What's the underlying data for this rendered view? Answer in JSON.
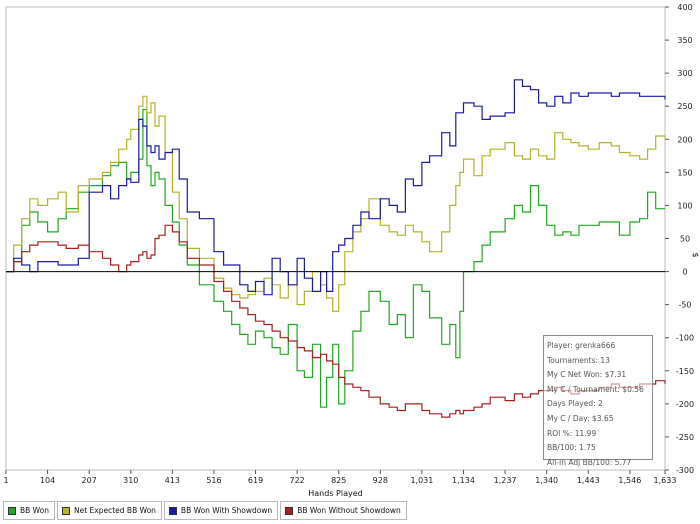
{
  "chart_data": {
    "type": "line",
    "title": "",
    "xlabel": "Hands Played",
    "ylabel": "$",
    "xlim": [
      1,
      1633
    ],
    "ylim": [
      -300,
      400
    ],
    "x_ticks": [
      "1",
      "104",
      "207",
      "310",
      "413",
      "516",
      "619",
      "722",
      "825",
      "928",
      "1,031",
      "1,134",
      "1,237",
      "1,340",
      "1,443",
      "1,546",
      "1,633"
    ],
    "x_tick_values": [
      1,
      104,
      207,
      310,
      413,
      516,
      619,
      722,
      825,
      928,
      1031,
      1134,
      1237,
      1340,
      1443,
      1546,
      1633
    ],
    "y_ticks": [
      400,
      350,
      300,
      250,
      200,
      150,
      100,
      50,
      0,
      -50,
      -100,
      -150,
      -200,
      -250,
      -300
    ],
    "zero_line": true,
    "series": [
      {
        "name": "BB Won",
        "color": "#22a822",
        "x": [
          1,
          20,
          40,
          60,
          80,
          104,
          130,
          150,
          180,
          207,
          240,
          260,
          280,
          300,
          310,
          330,
          340,
          350,
          360,
          370,
          380,
          395,
          413,
          430,
          450,
          480,
          516,
          540,
          560,
          580,
          600,
          619,
          640,
          660,
          680,
          700,
          722,
          740,
          760,
          780,
          795,
          810,
          825,
          840,
          860,
          880,
          900,
          928,
          950,
          970,
          990,
          1010,
          1031,
          1050,
          1080,
          1100,
          1115,
          1125,
          1134,
          1160,
          1180,
          1200,
          1237,
          1260,
          1280,
          1300,
          1320,
          1340,
          1360,
          1380,
          1400,
          1420,
          1443,
          1470,
          1500,
          1520,
          1546,
          1570,
          1590,
          1610,
          1633
        ],
        "values": [
          0,
          15,
          70,
          90,
          75,
          60,
          80,
          95,
          120,
          130,
          145,
          160,
          165,
          140,
          150,
          170,
          245,
          160,
          130,
          150,
          140,
          100,
          75,
          40,
          10,
          -20,
          -45,
          -60,
          -80,
          -95,
          -110,
          -90,
          -100,
          -115,
          -125,
          -80,
          -150,
          -160,
          -110,
          -205,
          -160,
          -110,
          -200,
          -150,
          -90,
          -60,
          -30,
          -45,
          -80,
          -65,
          -100,
          -20,
          -30,
          -70,
          -110,
          -80,
          -130,
          -60,
          0,
          15,
          40,
          60,
          80,
          100,
          90,
          130,
          100,
          70,
          55,
          60,
          55,
          70,
          70,
          75,
          75,
          55,
          75,
          80,
          120,
          95,
          95
        ]
      },
      {
        "name": "Net Expected BB Won",
        "color": "#b4b42a",
        "x": [
          1,
          20,
          40,
          60,
          80,
          104,
          130,
          150,
          180,
          207,
          240,
          260,
          280,
          300,
          310,
          330,
          340,
          350,
          360,
          370,
          380,
          395,
          413,
          430,
          450,
          480,
          516,
          540,
          560,
          580,
          600,
          619,
          640,
          660,
          680,
          700,
          722,
          740,
          760,
          780,
          795,
          810,
          825,
          840,
          860,
          880,
          900,
          928,
          950,
          970,
          990,
          1010,
          1031,
          1050,
          1080,
          1100,
          1115,
          1125,
          1134,
          1160,
          1180,
          1200,
          1237,
          1260,
          1280,
          1300,
          1320,
          1340,
          1360,
          1380,
          1400,
          1420,
          1443,
          1470,
          1500,
          1520,
          1546,
          1570,
          1590,
          1610,
          1633
        ],
        "values": [
          0,
          40,
          80,
          110,
          100,
          110,
          120,
          90,
          130,
          140,
          150,
          165,
          185,
          200,
          215,
          250,
          265,
          240,
          255,
          220,
          235,
          180,
          120,
          80,
          35,
          20,
          -10,
          -25,
          -35,
          -40,
          -35,
          -30,
          -10,
          -20,
          -40,
          -20,
          -50,
          -30,
          0,
          -20,
          -40,
          -60,
          -20,
          30,
          60,
          80,
          110,
          70,
          60,
          55,
          70,
          60,
          45,
          30,
          60,
          100,
          130,
          150,
          170,
          145,
          175,
          185,
          195,
          175,
          170,
          185,
          175,
          170,
          210,
          200,
          195,
          190,
          185,
          195,
          190,
          180,
          175,
          170,
          185,
          205,
          200
        ]
      },
      {
        "name": "BB Won With Showdown",
        "color": "#1a1aa6",
        "x": [
          1,
          20,
          40,
          60,
          80,
          104,
          130,
          150,
          180,
          207,
          240,
          260,
          280,
          300,
          310,
          330,
          340,
          350,
          360,
          370,
          380,
          395,
          413,
          430,
          450,
          480,
          516,
          540,
          560,
          580,
          600,
          619,
          640,
          660,
          680,
          700,
          722,
          740,
          760,
          780,
          795,
          810,
          825,
          840,
          860,
          880,
          900,
          928,
          950,
          970,
          990,
          1010,
          1031,
          1050,
          1080,
          1100,
          1115,
          1125,
          1134,
          1160,
          1180,
          1200,
          1237,
          1260,
          1280,
          1300,
          1320,
          1340,
          1360,
          1380,
          1400,
          1420,
          1443,
          1470,
          1500,
          1520,
          1546,
          1570,
          1590,
          1610,
          1633
        ],
        "values": [
          0,
          20,
          10,
          0,
          15,
          15,
          10,
          10,
          20,
          120,
          130,
          110,
          130,
          140,
          135,
          230,
          220,
          190,
          180,
          190,
          170,
          180,
          185,
          140,
          90,
          80,
          30,
          10,
          10,
          -20,
          -30,
          -15,
          -35,
          20,
          0,
          -20,
          20,
          -10,
          -30,
          0,
          -30,
          30,
          40,
          50,
          70,
          90,
          80,
          110,
          100,
          90,
          140,
          130,
          165,
          175,
          210,
          190,
          240,
          240,
          255,
          250,
          230,
          235,
          240,
          290,
          280,
          275,
          255,
          250,
          265,
          255,
          270,
          265,
          270,
          270,
          265,
          270,
          270,
          265,
          265,
          265,
          260
        ]
      },
      {
        "name": "BB Won Without Showdown",
        "color": "#a82020",
        "x": [
          1,
          20,
          40,
          60,
          80,
          104,
          130,
          150,
          180,
          207,
          240,
          260,
          280,
          300,
          310,
          330,
          340,
          350,
          360,
          370,
          380,
          395,
          413,
          430,
          450,
          480,
          516,
          540,
          560,
          580,
          600,
          619,
          640,
          660,
          680,
          700,
          722,
          740,
          760,
          780,
          795,
          810,
          825,
          840,
          860,
          880,
          900,
          928,
          950,
          970,
          990,
          1010,
          1031,
          1050,
          1080,
          1100,
          1115,
          1125,
          1134,
          1160,
          1180,
          1200,
          1237,
          1260,
          1280,
          1300,
          1320,
          1340,
          1360,
          1380,
          1400,
          1420,
          1443,
          1470,
          1500,
          1520,
          1546,
          1570,
          1590,
          1610,
          1633
        ],
        "values": [
          0,
          15,
          30,
          40,
          45,
          45,
          40,
          35,
          40,
          30,
          20,
          10,
          0,
          10,
          15,
          25,
          30,
          20,
          25,
          50,
          55,
          70,
          60,
          45,
          20,
          10,
          -15,
          -30,
          -45,
          -55,
          -65,
          -75,
          -80,
          -90,
          -100,
          -105,
          -115,
          -120,
          -130,
          -125,
          -135,
          -140,
          -160,
          -170,
          -175,
          -180,
          -190,
          -200,
          -205,
          -210,
          -200,
          -200,
          -210,
          -215,
          -220,
          -215,
          -210,
          -215,
          -210,
          -205,
          -200,
          -190,
          -195,
          -185,
          -190,
          -185,
          -180,
          -180,
          -175,
          -180,
          -185,
          -180,
          -180,
          -175,
          -170,
          -175,
          -175,
          -170,
          -170,
          -165,
          -170
        ]
      }
    ],
    "stats_box": [
      "Player: grenka666",
      "Tournaments: 13",
      "My C Net Won: $7.31",
      "My C / Tournament: $0.56",
      "Days Played: 2",
      "My C / Day: $3.65",
      "ROI %: 11.99",
      "BB/100: 1.75",
      "All-In Adj BB/100: 5.77"
    ],
    "legend_placement": "bottom-left"
  }
}
